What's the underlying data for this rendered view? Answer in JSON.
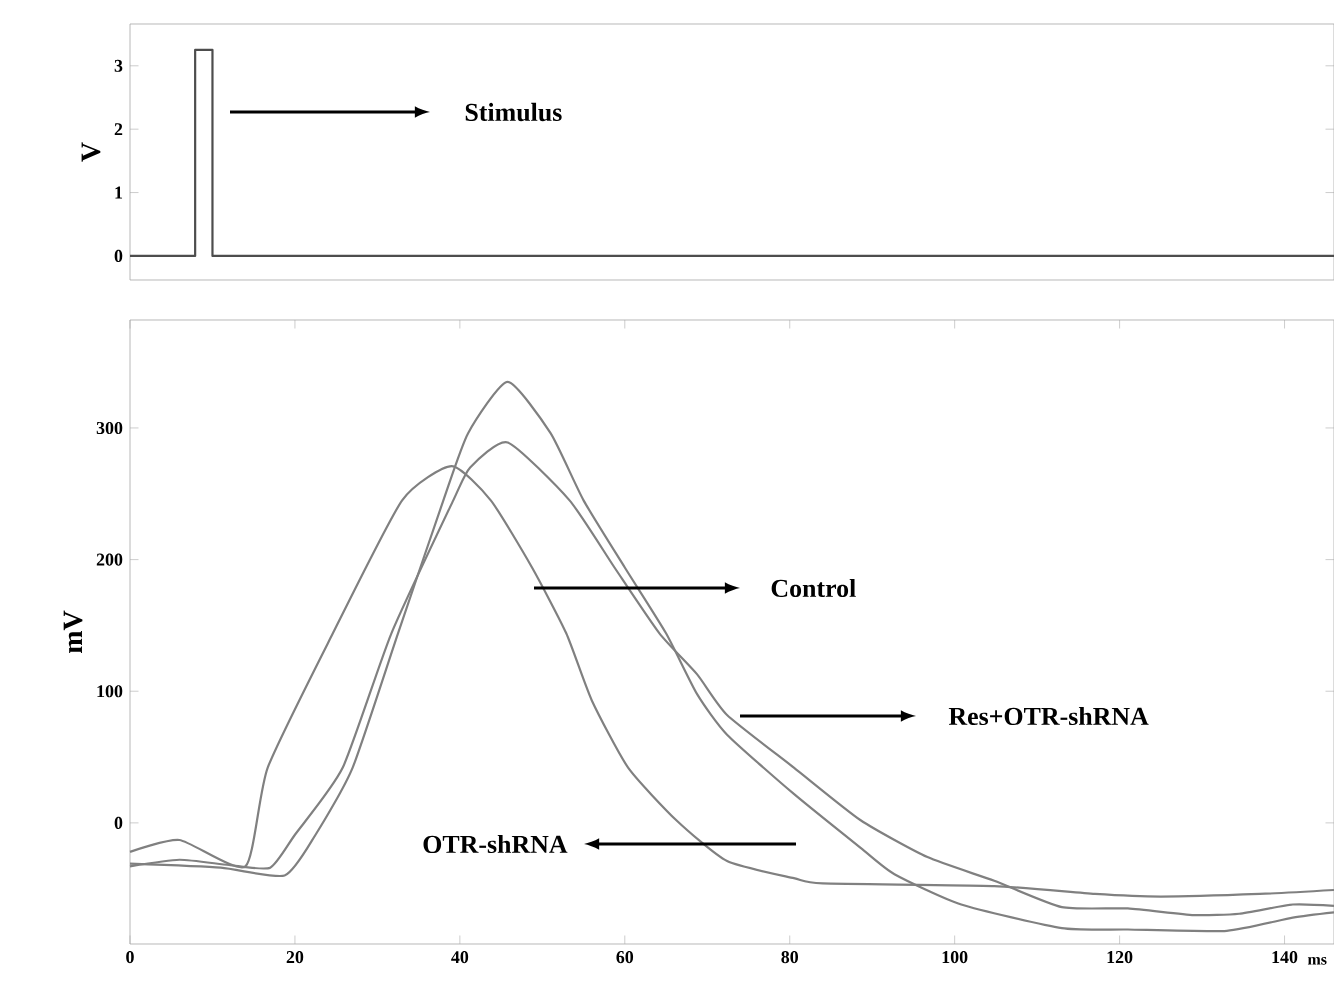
{
  "chart_data": [
    {
      "type": "line",
      "ylabel": "V",
      "xlim": [
        0,
        146
      ],
      "ylim": [
        -0.38,
        3.66
      ],
      "yticks": [
        0,
        1,
        2,
        3
      ],
      "tick_labels": "y",
      "series": [
        {
          "color": "#4d4d4d",
          "x": [
            0,
            7.9,
            7.9,
            10,
            10,
            146
          ],
          "values": [
            0,
            0,
            3.25,
            3.25,
            0,
            0
          ]
        }
      ],
      "annotations": [
        "Stimulus"
      ]
    },
    {
      "type": "line",
      "ylabel": "mV",
      "xlabel": "ms",
      "xlim": [
        0,
        146
      ],
      "ylim": [
        -92,
        382
      ],
      "xticks": [
        0,
        20,
        40,
        60,
        80,
        100,
        120,
        140
      ],
      "yticks": [
        0,
        100,
        200,
        300
      ],
      "series": [
        {
          "color": "#808080",
          "x": [
            0,
            6,
            14,
            16.7,
            24.6,
            33,
            39,
            43.75,
            48.75,
            52.9,
            56,
            60.4,
            66.25,
            72.4,
            80.5,
            84,
            104.8,
            117,
            125,
            137,
            146
          ],
          "values": [
            -22,
            -13,
            -33,
            42,
            144,
            245,
            271,
            245,
            194,
            144,
            93,
            42,
            2,
            -29,
            -42,
            -46,
            -48,
            -54,
            -56,
            -54,
            -51
          ]
        },
        {
          "color": "#808080",
          "x": [
            0,
            11,
            18.75,
            22.5,
            27,
            32.5,
            38,
            41,
            45.8,
            51,
            55,
            60,
            65,
            68.75,
            72.4,
            80.5,
            88.6,
            92.7,
            100.8,
            113,
            121,
            133,
            141,
            146
          ],
          "values": [
            -31,
            -34,
            -40,
            -9,
            42,
            144,
            245,
            296,
            335,
            296,
            245,
            194,
            144,
            98,
            67,
            22,
            -19,
            -39,
            -62,
            -80,
            -81,
            -82,
            -72,
            -68
          ]
        },
        {
          "color": "#808080",
          "x": [
            0,
            6,
            12,
            17,
            20,
            25.8,
            31.7,
            39.2,
            41.25,
            45.8,
            53.3,
            58.75,
            64.2,
            68.75,
            72.4,
            80.5,
            88.6,
            96.7,
            104.8,
            113,
            121,
            129,
            134.5,
            141,
            146
          ],
          "values": [
            -33,
            -28,
            -32,
            -34,
            -9,
            42,
            144,
            245,
            270,
            289,
            245,
            194,
            144,
            113,
            82,
            42,
            2,
            -26,
            -44,
            -64,
            -65,
            -70,
            -69,
            -62,
            -63
          ]
        }
      ],
      "annotations": [
        "Control",
        "Res+OTR-shRNA",
        "OTR-shRNA"
      ]
    }
  ]
}
